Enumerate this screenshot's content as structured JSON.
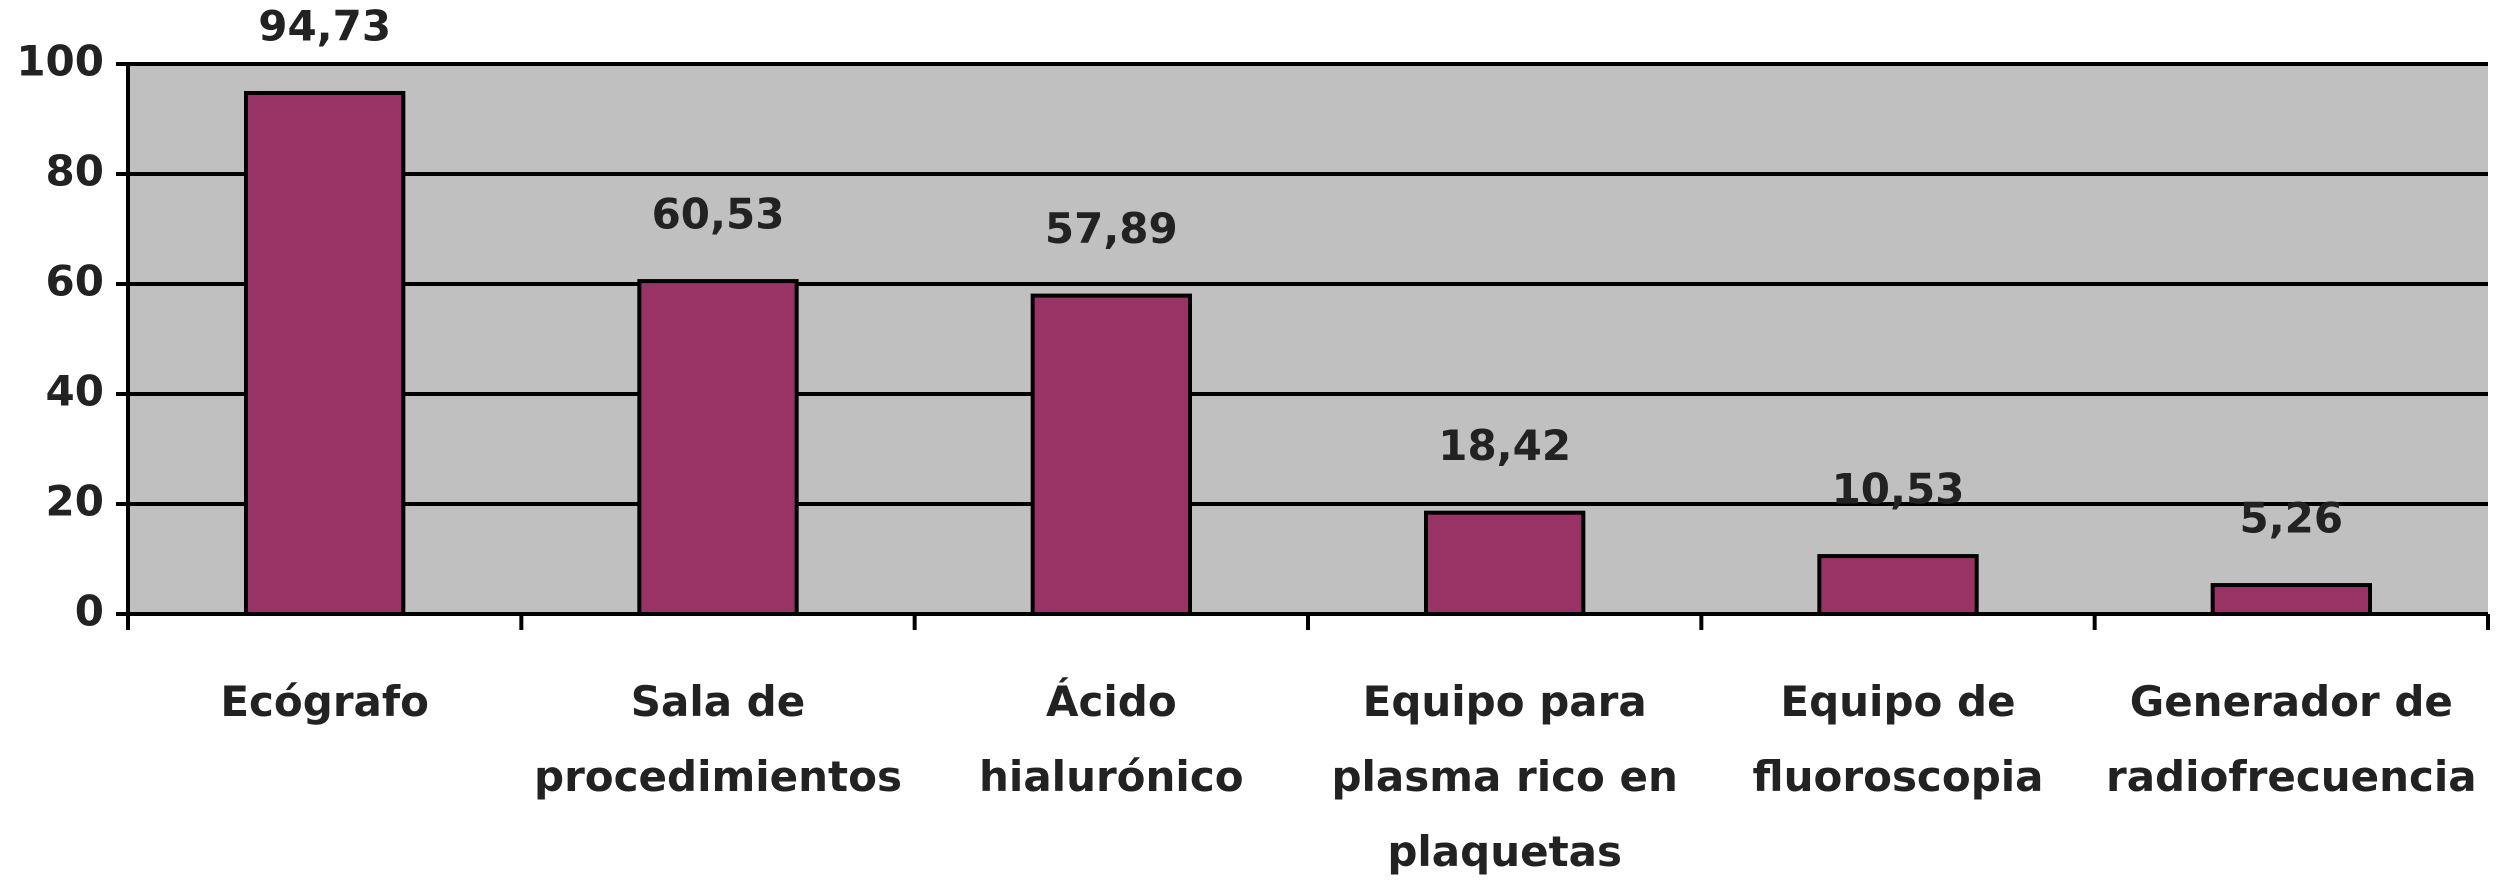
{
  "chart_data": {
    "type": "bar",
    "categories": [
      "Ecógrafo",
      "Sala de procedimientos",
      "Ácido hialurónico",
      "Equipo para plasma rico en plaquetas",
      "Equipo de fluoroscopia",
      "Generador de radiofrecuencia"
    ],
    "values": [
      94.73,
      60.53,
      57.89,
      18.42,
      10.53,
      5.26
    ],
    "value_labels": [
      "94,73",
      "60,53",
      "57,89",
      "18,42",
      "10,53",
      "5,26"
    ],
    "color": "#993366",
    "ylim": [
      0,
      100
    ],
    "yticks": [
      0,
      20,
      40,
      60,
      80,
      100
    ],
    "grid": true
  }
}
